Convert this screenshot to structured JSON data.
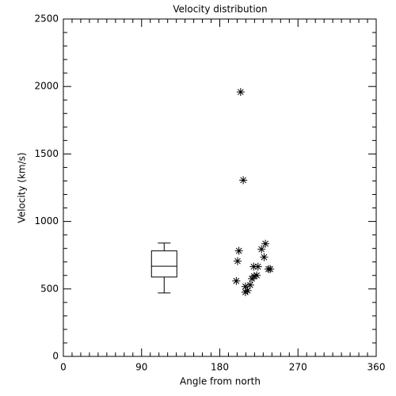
{
  "chart_data": {
    "type": "scatter",
    "title": "Velocity distribution",
    "x_label": "Angle from north",
    "y_label": "Velocity (km/s)",
    "xlim": [
      0,
      360
    ],
    "ylim": [
      0,
      2500
    ],
    "xticks": [
      0,
      90,
      180,
      270,
      360
    ],
    "yticks": [
      0,
      500,
      1000,
      1500,
      2000,
      2500
    ],
    "xminorticks": [
      10,
      20,
      30,
      40,
      50,
      60,
      70,
      80,
      100,
      110,
      120,
      130,
      140,
      150,
      160,
      170,
      190,
      200,
      210,
      220,
      230,
      240,
      250,
      260,
      280,
      290,
      300,
      310,
      320,
      330,
      340,
      350
    ],
    "yminorticks": [
      100,
      200,
      300,
      400,
      600,
      700,
      800,
      900,
      1100,
      1200,
      1300,
      1400,
      1600,
      1700,
      1800,
      1900,
      2100,
      2200,
      2300,
      2400
    ],
    "color": "#000000",
    "x": [
      204,
      207,
      202,
      200.5,
      199,
      209.5,
      212,
      209.5,
      215,
      217,
      219.5,
      222.5,
      219,
      224,
      228,
      231,
      232.5,
      236,
      238
    ],
    "y": [
      1959,
      1306,
      782,
      706,
      559,
      518,
      488,
      476,
      529,
      576,
      594,
      600,
      665,
      665,
      794,
      735,
      835,
      647,
      647
    ],
    "box": {
      "x": 116,
      "whisker_low": 470,
      "q1": 588,
      "median": 668,
      "q3": 782,
      "whisker_high": 840
    }
  }
}
